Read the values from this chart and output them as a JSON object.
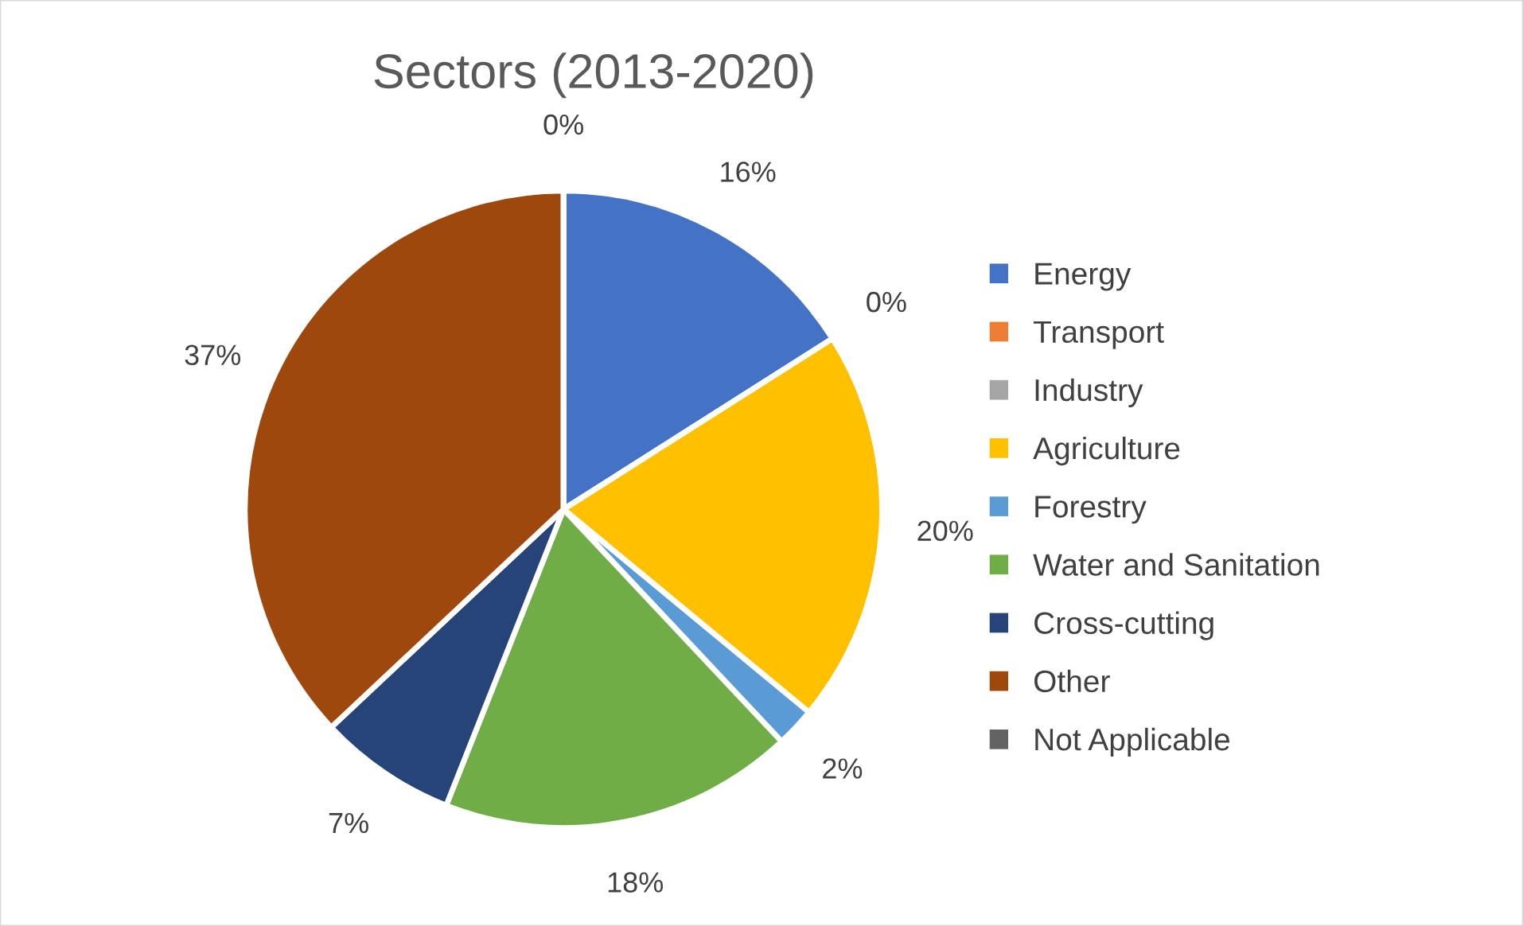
{
  "chart_data": {
    "type": "pie",
    "title": "Sectors (2013-2020)",
    "categories": [
      "Energy",
      "Transport",
      "Industry",
      "Agriculture",
      "Forestry",
      "Water and Sanitation",
      "Cross-cutting",
      "Other",
      "Not Applicable"
    ],
    "values": [
      16,
      0,
      0,
      20,
      2,
      18,
      7,
      37,
      0
    ],
    "colors": [
      "#4472c4",
      "#ed7d31",
      "#a5a5a5",
      "#ffc000",
      "#5b9bd5",
      "#70ad47",
      "#264478",
      "#9e480e",
      "#636363"
    ],
    "value_labels": [
      "16%",
      "0%",
      null,
      "20%",
      "2%",
      "18%",
      "7%",
      "37%",
      "0%"
    ],
    "legend": "right"
  }
}
